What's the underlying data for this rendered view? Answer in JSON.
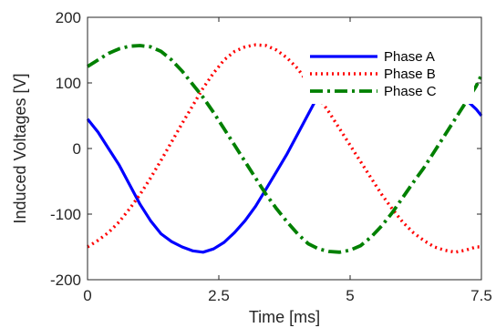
{
  "chart_data": {
    "type": "line",
    "xlabel": "Time [ms]",
    "ylabel": "Induced Voltages [V]",
    "xlim": [
      0,
      7.5
    ],
    "ylim": [
      -200,
      200
    ],
    "xticks": [
      0,
      2.5,
      5,
      7.5
    ],
    "xtick_labels": [
      "0",
      "2.5",
      "5",
      "7.5"
    ],
    "yticks": [
      -200,
      -100,
      0,
      100,
      200
    ],
    "ytick_labels": [
      "-200",
      "-100",
      "0",
      "100",
      "200"
    ],
    "grid": false,
    "legend_position": "top-right",
    "series": [
      {
        "name": "Phase A",
        "color": "#0000ff",
        "style": "solid",
        "x": [
          0,
          0.2,
          0.4,
          0.6,
          0.8,
          1.0,
          1.2,
          1.4,
          1.6,
          1.8,
          2.0,
          2.2,
          2.4,
          2.6,
          2.8,
          3.0,
          3.2,
          3.4,
          3.6,
          3.8,
          4.0,
          4.2,
          4.4,
          4.6,
          4.8,
          5.0,
          5.2,
          5.4,
          5.6,
          5.8,
          6.0,
          6.2,
          6.4,
          6.6,
          6.8,
          7.0,
          7.2,
          7.4,
          7.5
        ],
        "y": [
          45,
          25,
          0,
          -25,
          -55,
          -85,
          -110,
          -130,
          -142,
          -150,
          -156,
          -158,
          -153,
          -143,
          -128,
          -110,
          -88,
          -62,
          -35,
          -8,
          22,
          52,
          82,
          108,
          130,
          145,
          153,
          157,
          156,
          150,
          140,
          125,
          110,
          95,
          85,
          80,
          75,
          60,
          50
        ]
      },
      {
        "name": "Phase B",
        "color": "#ff0000",
        "style": "dotted",
        "x": [
          0,
          0.2,
          0.4,
          0.6,
          0.8,
          1.0,
          1.2,
          1.4,
          1.6,
          1.8,
          2.0,
          2.2,
          2.4,
          2.6,
          2.8,
          3.0,
          3.2,
          3.4,
          3.6,
          3.8,
          4.0,
          4.2,
          4.4,
          4.6,
          4.8,
          5.0,
          5.2,
          5.4,
          5.6,
          5.8,
          6.0,
          6.2,
          6.4,
          6.6,
          6.8,
          7.0,
          7.2,
          7.4,
          7.5
        ],
        "y": [
          -150,
          -140,
          -128,
          -112,
          -92,
          -70,
          -45,
          -18,
          10,
          38,
          65,
          92,
          115,
          135,
          148,
          155,
          158,
          157,
          150,
          138,
          122,
          100,
          78,
          55,
          30,
          5,
          -20,
          -45,
          -70,
          -92,
          -112,
          -128,
          -140,
          -150,
          -155,
          -158,
          -155,
          -150,
          -150
        ]
      },
      {
        "name": "Phase C",
        "color": "#008000",
        "style": "dashdot",
        "x": [
          0,
          0.2,
          0.4,
          0.6,
          0.8,
          1.0,
          1.2,
          1.4,
          1.6,
          1.8,
          2.0,
          2.2,
          2.4,
          2.6,
          2.8,
          3.0,
          3.2,
          3.4,
          3.6,
          3.8,
          4.0,
          4.2,
          4.4,
          4.6,
          4.8,
          5.0,
          5.2,
          5.4,
          5.6,
          5.8,
          6.0,
          6.2,
          6.4,
          6.6,
          6.8,
          7.0,
          7.2,
          7.4,
          7.5
        ],
        "y": [
          125,
          135,
          145,
          152,
          156,
          157,
          155,
          148,
          135,
          118,
          98,
          78,
          55,
          30,
          5,
          -20,
          -45,
          -70,
          -92,
          -112,
          -130,
          -145,
          -153,
          -157,
          -158,
          -155,
          -148,
          -135,
          -118,
          -98,
          -75,
          -52,
          -30,
          -5,
          20,
          45,
          70,
          95,
          112
        ]
      }
    ]
  }
}
